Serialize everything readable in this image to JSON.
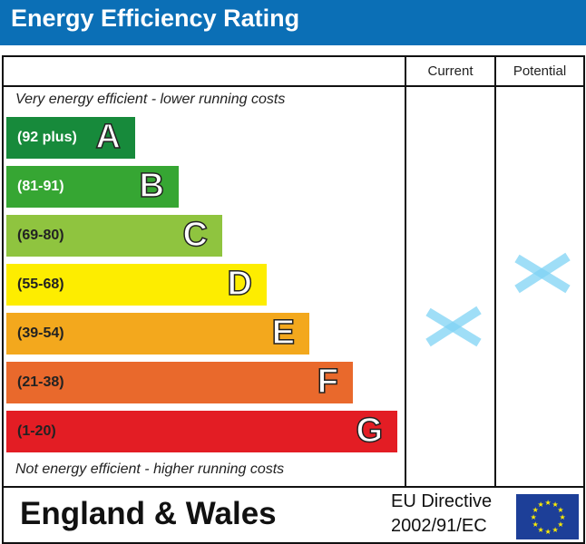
{
  "header": {
    "title": "Energy Efficiency Rating"
  },
  "columns": {
    "current": "Current",
    "potential": "Potential"
  },
  "notes": {
    "top": "Very energy efficient - lower running costs",
    "bottom": "Not energy efficient - higher running costs"
  },
  "footer": {
    "region": "England & Wales",
    "directive_line1": "EU Directive",
    "directive_line2": "2002/91/EC"
  },
  "chart_data": {
    "type": "bar",
    "bands": [
      {
        "range": "(92 plus)",
        "letter": "A",
        "color": "#178a3b"
      },
      {
        "range": "(81-91)",
        "letter": "B",
        "color": "#36a633"
      },
      {
        "range": "(69-80)",
        "letter": "C",
        "color": "#8fc43f"
      },
      {
        "range": "(55-68)",
        "letter": "D",
        "color": "#fded00"
      },
      {
        "range": "(39-54)",
        "letter": "E",
        "color": "#f3a81d"
      },
      {
        "range": "(21-38)",
        "letter": "F",
        "color": "#e9692c"
      },
      {
        "range": "(1-20)",
        "letter": "G",
        "color": "#e31d24"
      }
    ],
    "current": null,
    "potential": null,
    "marker_color": "#7fd3f5"
  }
}
